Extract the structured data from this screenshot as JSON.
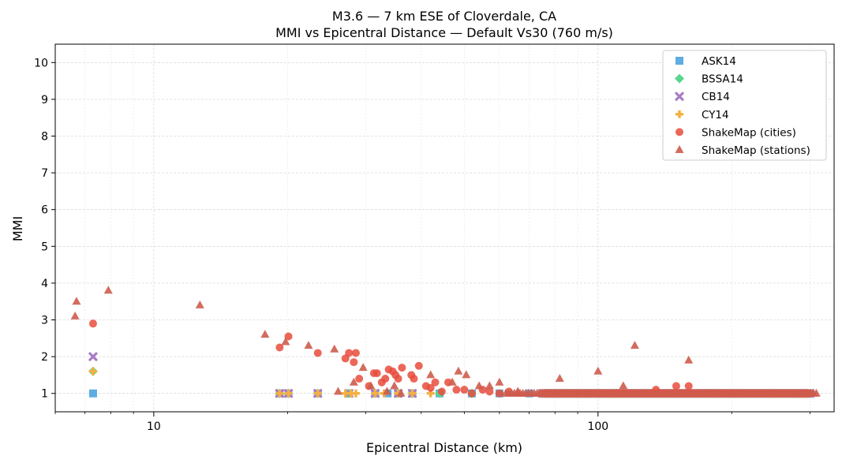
{
  "chart_data": {
    "type": "scatter",
    "title": "M3.6 — 7 km ESE of Cloverdale, CA",
    "subtitle": "MMI vs Epicentral Distance — Default Vs30 (760 m/s)",
    "xlabel": "Epicentral Distance (km)",
    "ylabel": "MMI",
    "xscale": "log",
    "xlim": [
      6,
      340
    ],
    "ylim": [
      0.5,
      10.5
    ],
    "x_ticks": [
      10,
      100
    ],
    "y_ticks": [
      1,
      2,
      3,
      4,
      5,
      6,
      7,
      8,
      9,
      10
    ],
    "grid": true,
    "legend_position": "top-right",
    "series": [
      {
        "name": "ASK14",
        "marker": "square",
        "color": "#5DADE2",
        "points": [
          [
            7.3,
            1.0
          ],
          [
            19.2,
            1.0
          ],
          [
            20.1,
            1.0
          ],
          [
            23.4,
            1.0
          ],
          [
            27.5,
            1.0
          ],
          [
            31.5,
            1.0
          ],
          [
            33.6,
            1.0
          ],
          [
            35.5,
            1.0
          ],
          [
            38.2,
            1.0
          ],
          [
            44.0,
            1.0
          ],
          [
            52.0,
            1.0
          ],
          [
            60.0,
            1.0
          ],
          [
            70.0,
            1.0
          ]
        ],
        "dense_band": {
          "x_range": [
            75,
            300
          ],
          "y": 1.0
        }
      },
      {
        "name": "BSSA14",
        "marker": "diamond",
        "color": "#58D68D",
        "points": [
          [
            7.3,
            1.6
          ],
          [
            19.2,
            1.0
          ],
          [
            20.1,
            1.0
          ],
          [
            23.4,
            1.0
          ],
          [
            27.5,
            1.0
          ],
          [
            31.5,
            1.0
          ],
          [
            35.5,
            1.0
          ],
          [
            38.2,
            1.0
          ],
          [
            44.0,
            1.0
          ],
          [
            52.0,
            1.0
          ]
        ],
        "dense_band": {
          "x_range": [
            75,
            300
          ],
          "y": 1.0
        }
      },
      {
        "name": "CB14",
        "marker": "x",
        "color": "#A97CC4",
        "points": [
          [
            7.3,
            2.0
          ],
          [
            19.2,
            1.0
          ],
          [
            20.1,
            1.0
          ],
          [
            23.4,
            1.0
          ],
          [
            27.5,
            1.0
          ],
          [
            31.5,
            1.0
          ],
          [
            35.5,
            1.0
          ],
          [
            38.2,
            1.0
          ]
        ],
        "dense_band": {
          "x_range": [
            75,
            300
          ],
          "y": 1.0
        }
      },
      {
        "name": "CY14",
        "marker": "plus",
        "color": "#F5B041",
        "points": [
          [
            7.3,
            1.6
          ],
          [
            19.2,
            1.0
          ],
          [
            20.1,
            1.0
          ],
          [
            23.4,
            1.0
          ],
          [
            27.0,
            1.0
          ],
          [
            27.8,
            1.0
          ],
          [
            28.5,
            1.0
          ],
          [
            31.5,
            1.0
          ],
          [
            33.0,
            1.0
          ],
          [
            35.5,
            1.0
          ],
          [
            38.2,
            1.0
          ],
          [
            42.0,
            1.0
          ]
        ],
        "dense_band": {
          "x_range": [
            75,
            300
          ],
          "y": 1.0
        }
      },
      {
        "name": "ShakeMap (cities)",
        "marker": "circle",
        "color": "#E74C3C",
        "points": [
          [
            7.3,
            2.9
          ],
          [
            19.2,
            2.25
          ],
          [
            20.1,
            2.55
          ],
          [
            23.4,
            2.1
          ],
          [
            27.0,
            1.95
          ],
          [
            27.5,
            2.1
          ],
          [
            28.2,
            1.85
          ],
          [
            28.5,
            2.1
          ],
          [
            29.0,
            1.4
          ],
          [
            30.5,
            1.2
          ],
          [
            31.3,
            1.55
          ],
          [
            31.8,
            1.55
          ],
          [
            32.6,
            1.3
          ],
          [
            33.2,
            1.4
          ],
          [
            33.8,
            1.65
          ],
          [
            34.5,
            1.6
          ],
          [
            35.0,
            1.5
          ],
          [
            35.5,
            1.4
          ],
          [
            36.2,
            1.7
          ],
          [
            38.0,
            1.5
          ],
          [
            38.5,
            1.4
          ],
          [
            39.5,
            1.75
          ],
          [
            41.0,
            1.2
          ],
          [
            42.0,
            1.15
          ],
          [
            43.0,
            1.3
          ],
          [
            44.5,
            1.05
          ],
          [
            46.0,
            1.3
          ],
          [
            48.0,
            1.1
          ],
          [
            50.0,
            1.1
          ],
          [
            52.0,
            1.0
          ],
          [
            55.0,
            1.1
          ],
          [
            57.0,
            1.05
          ],
          [
            60.0,
            1.0
          ],
          [
            63.0,
            1.05
          ],
          [
            135.0,
            1.1
          ],
          [
            150.0,
            1.2
          ],
          [
            160.0,
            1.2
          ]
        ],
        "dense_band": {
          "x_range": [
            75,
            300
          ],
          "y": 1.0
        }
      },
      {
        "name": "ShakeMap (stations)",
        "marker": "triangle",
        "color": "#CD5C4E",
        "points": [
          [
            6.7,
            3.5
          ],
          [
            6.65,
            3.1
          ],
          [
            7.9,
            3.8
          ],
          [
            12.7,
            3.4
          ],
          [
            17.8,
            2.6
          ],
          [
            19.8,
            2.4
          ],
          [
            22.3,
            2.3
          ],
          [
            25.5,
            2.2
          ],
          [
            26.0,
            1.05
          ],
          [
            28.2,
            1.3
          ],
          [
            29.6,
            1.7
          ],
          [
            30.8,
            1.2
          ],
          [
            33.5,
            1.05
          ],
          [
            34.8,
            1.2
          ],
          [
            36.0,
            1.0
          ],
          [
            42.0,
            1.5
          ],
          [
            47.0,
            1.3
          ],
          [
            48.5,
            1.6
          ],
          [
            50.5,
            1.5
          ],
          [
            54.0,
            1.2
          ],
          [
            57.0,
            1.2
          ],
          [
            60.0,
            1.3
          ],
          [
            66.0,
            1.05
          ],
          [
            82.0,
            1.4
          ],
          [
            100.0,
            1.6
          ],
          [
            114.0,
            1.2
          ],
          [
            121.0,
            2.3
          ],
          [
            160.0,
            1.9
          ]
        ],
        "dense_band": {
          "x_range": [
            62,
            310
          ],
          "y": 1.0
        }
      }
    ]
  }
}
